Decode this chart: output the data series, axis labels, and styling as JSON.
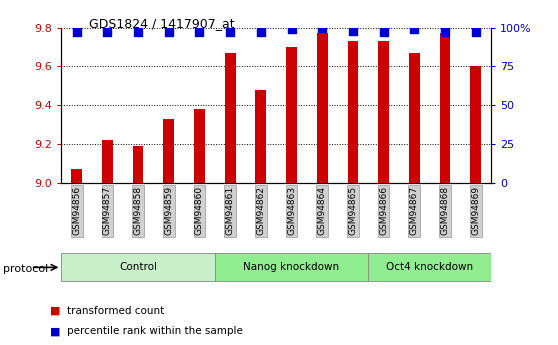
{
  "title": "GDS1824 / 1417907_at",
  "samples": [
    "GSM94856",
    "GSM94857",
    "GSM94858",
    "GSM94859",
    "GSM94860",
    "GSM94861",
    "GSM94862",
    "GSM94863",
    "GSM94864",
    "GSM94865",
    "GSM94866",
    "GSM94867",
    "GSM94868",
    "GSM94869"
  ],
  "bar_values": [
    9.07,
    9.22,
    9.19,
    9.33,
    9.38,
    9.67,
    9.48,
    9.7,
    9.77,
    9.73,
    9.73,
    9.67,
    9.77,
    9.6
  ],
  "dot_values": [
    97,
    97,
    97,
    97,
    97,
    97,
    97,
    99,
    100,
    98,
    97,
    99,
    97,
    97
  ],
  "ylim_left": [
    9.0,
    9.8
  ],
  "ylim_right": [
    0,
    100
  ],
  "yticks_left": [
    9.0,
    9.2,
    9.4,
    9.6,
    9.8
  ],
  "yticks_right": [
    0,
    25,
    50,
    75,
    100
  ],
  "ytick_labels_right": [
    "0",
    "25",
    "50",
    "75",
    "100%"
  ],
  "groups": [
    {
      "label": "Control",
      "start": 0,
      "end": 5
    },
    {
      "label": "Nanog knockdown",
      "start": 5,
      "end": 10
    },
    {
      "label": "Oct4 knockdown",
      "start": 10,
      "end": 14
    }
  ],
  "group_colors": [
    "#c8f0c8",
    "#90ee90",
    "#90ee90"
  ],
  "bar_color": "#cc0000",
  "dot_color": "#0000cc",
  "bar_width": 0.35,
  "protocol_label": "protocol",
  "legend_bar_label": "transformed count",
  "legend_dot_label": "percentile rank within the sample",
  "tick_bg_color": "#d0d0d0",
  "dot_size": 30,
  "ylabel_left_color": "#cc0000",
  "ylabel_right_color": "#0000cc",
  "bg_color": "#ffffff"
}
